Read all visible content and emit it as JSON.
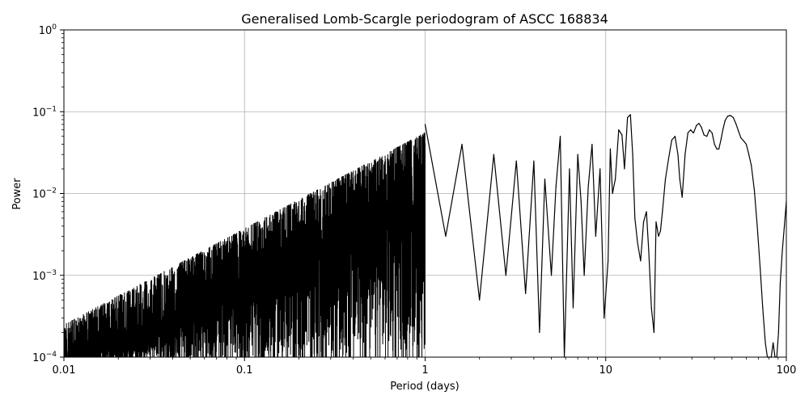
{
  "chart_data": {
    "type": "line",
    "title": "Generalised Lomb-Scargle periodogram of ASCC 168834",
    "xlabel": "Period (days)",
    "ylabel": "Power",
    "xscale": "log",
    "yscale": "log",
    "xlim": [
      0.01,
      100
    ],
    "ylim": [
      0.0001,
      1
    ],
    "grid": true,
    "x_ticks": [
      {
        "value": 0.01,
        "label": "0.01"
      },
      {
        "value": 0.1,
        "label": "0.1"
      },
      {
        "value": 1,
        "label": "1"
      },
      {
        "value": 10,
        "label": "10"
      },
      {
        "value": 100,
        "label": "100"
      }
    ],
    "y_ticks": [
      {
        "value": 0.0001,
        "base": "10",
        "exp": "−4"
      },
      {
        "value": 0.001,
        "base": "10",
        "exp": "−3"
      },
      {
        "value": 0.01,
        "base": "10",
        "exp": "−2"
      },
      {
        "value": 0.1,
        "base": "10",
        "exp": "−1"
      },
      {
        "value": 1,
        "base": "10",
        "exp": "0"
      }
    ],
    "series": [
      {
        "color": "#000000",
        "x": [
          1.0,
          1.3,
          1.6,
          2.0,
          2.4,
          2.8,
          3.2,
          3.6,
          4.0,
          4.3,
          4.6,
          5.0,
          5.3,
          5.6,
          5.9,
          6.3,
          6.6,
          7.0,
          7.3,
          7.6,
          8.0,
          8.4,
          8.8,
          9.3,
          9.8,
          10.3,
          10.6,
          10.9,
          11.3,
          11.8,
          12.3,
          12.7,
          13.2,
          13.7,
          14.1,
          14.5,
          15.0,
          15.6,
          16.2,
          16.8,
          17.3,
          17.9,
          18.5,
          19.0,
          19.6,
          20.1,
          20.6,
          21.4,
          22.3,
          23.2,
          24.2,
          25.1,
          25.7,
          26.5,
          27.5,
          28.5,
          29.5,
          30.6,
          31.8,
          32.8,
          33.8,
          35.0,
          36.3,
          37.5,
          38.8,
          40.0,
          41.2,
          42.3,
          43.4,
          44.5,
          45.8,
          47.3,
          49.0,
          50.8,
          52.5,
          54.3,
          56.0,
          58.0,
          60.0,
          62.0,
          64.0,
          66.5,
          69.0,
          71.5,
          74.0,
          76.5,
          78.5,
          80.5,
          82.5,
          84.5,
          86.5,
          88.5,
          90.5,
          92.5,
          95.0,
          97.5,
          100.0
        ],
        "y": [
          0.07,
          0.003,
          0.04,
          0.0005,
          0.03,
          0.001,
          0.025,
          0.0006,
          0.025,
          0.0002,
          0.015,
          0.001,
          0.012,
          0.05,
          0.0001,
          0.02,
          0.0004,
          0.03,
          0.008,
          0.001,
          0.012,
          0.04,
          0.003,
          0.02,
          0.0003,
          0.0015,
          0.035,
          0.01,
          0.015,
          0.06,
          0.052,
          0.02,
          0.085,
          0.092,
          0.03,
          0.005,
          0.0025,
          0.0015,
          0.0045,
          0.006,
          0.002,
          0.0004,
          0.0002,
          0.0045,
          0.003,
          0.0035,
          0.006,
          0.015,
          0.027,
          0.045,
          0.05,
          0.03,
          0.015,
          0.009,
          0.03,
          0.055,
          0.06,
          0.055,
          0.068,
          0.072,
          0.065,
          0.052,
          0.05,
          0.06,
          0.055,
          0.04,
          0.035,
          0.035,
          0.045,
          0.06,
          0.078,
          0.088,
          0.09,
          0.085,
          0.072,
          0.058,
          0.048,
          0.044,
          0.04,
          0.03,
          0.022,
          0.011,
          0.004,
          0.0013,
          0.0004,
          0.00015,
          0.0001,
          0.0001,
          0.0001,
          0.00015,
          0.0001,
          0.0001,
          0.0002,
          0.0008,
          0.002,
          0.004,
          0.008
        ]
      }
    ]
  }
}
